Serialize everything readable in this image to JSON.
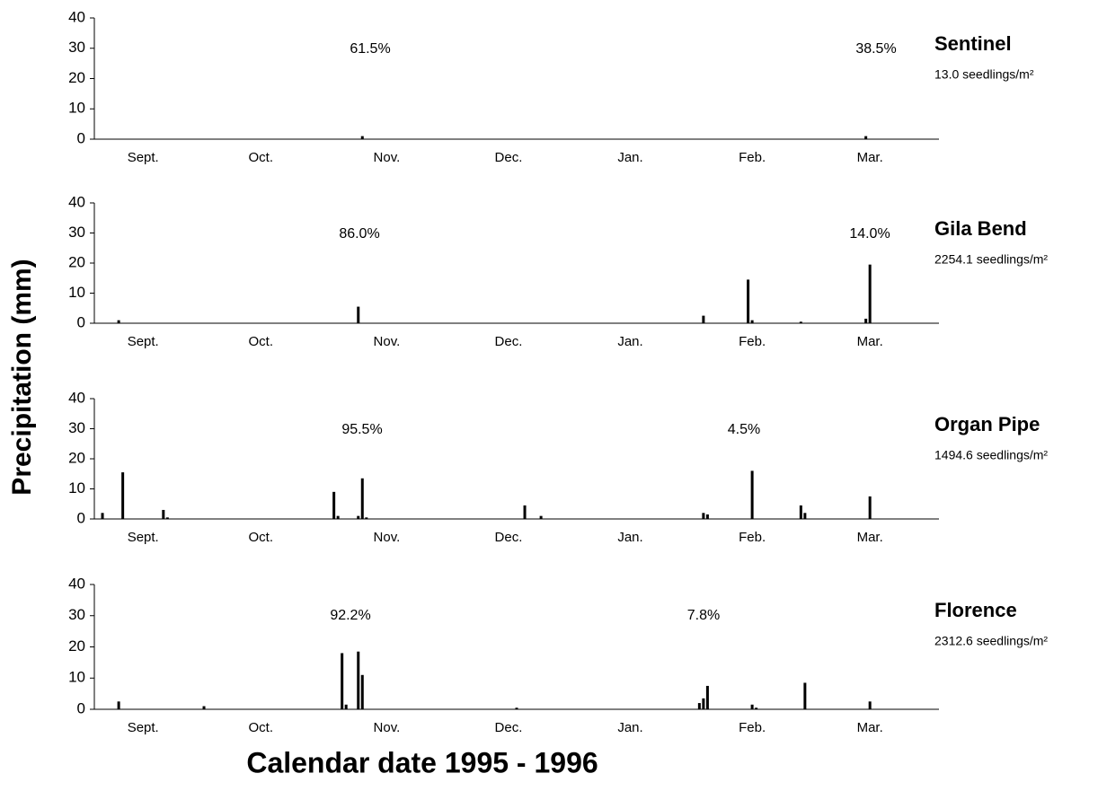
{
  "ylabel": "Precipitation (mm)",
  "xlabel": "Calendar date 1995 - 1996",
  "chart_data": [
    {
      "type": "bar",
      "title": "Sentinel",
      "subtitle": "13.0 seedlings/m²",
      "annotations": [
        "61.5%",
        "38.5%"
      ],
      "x": [
        66,
        190
      ],
      "values": [
        1,
        1
      ],
      "color": "#000000",
      "xlim": [
        0,
        208
      ],
      "xticks": [
        {
          "value": 12,
          "label": "Sept."
        },
        {
          "value": 41,
          "label": "Oct."
        },
        {
          "value": 72,
          "label": "Nov."
        },
        {
          "value": 102,
          "label": "Dec."
        },
        {
          "value": 132,
          "label": "Jan."
        },
        {
          "value": 162,
          "label": "Feb."
        },
        {
          "value": 191,
          "label": "Mar."
        }
      ],
      "ylim": [
        0,
        40
      ],
      "yticks": [
        0,
        10,
        20,
        30,
        40
      ]
    },
    {
      "type": "bar",
      "title": "Gila Bend",
      "subtitle": "2254.1 seedlings/m²",
      "annotations": [
        "86.0%",
        "14.0%"
      ],
      "x": [
        6,
        65,
        150,
        161,
        162,
        174,
        190,
        191
      ],
      "values": [
        1,
        5.5,
        2.5,
        14.5,
        1,
        0.5,
        1.5,
        19.5
      ],
      "color": "#000000",
      "xlim": [
        0,
        208
      ],
      "xticks": [
        {
          "value": 12,
          "label": "Sept."
        },
        {
          "value": 41,
          "label": "Oct."
        },
        {
          "value": 72,
          "label": "Nov."
        },
        {
          "value": 102,
          "label": "Dec."
        },
        {
          "value": 132,
          "label": "Jan."
        },
        {
          "value": 162,
          "label": "Feb."
        },
        {
          "value": 191,
          "label": "Mar."
        }
      ],
      "ylim": [
        0,
        40
      ],
      "yticks": [
        0,
        10,
        20,
        30,
        40
      ]
    },
    {
      "type": "bar",
      "title": "Organ Pipe",
      "subtitle": "1494.6 seedlings/m²",
      "annotations": [
        "95.5%",
        "4.5%"
      ],
      "x": [
        2,
        7,
        17,
        18,
        59,
        60,
        65,
        66,
        67,
        106,
        110,
        150,
        151,
        162,
        174,
        175,
        191
      ],
      "values": [
        2,
        15.5,
        3,
        0.5,
        9,
        1,
        1,
        13.5,
        0.5,
        4.5,
        1,
        2,
        1.5,
        16,
        4.5,
        2,
        7.5
      ],
      "color": "#000000",
      "xlim": [
        0,
        208
      ],
      "xticks": [
        {
          "value": 12,
          "label": "Sept."
        },
        {
          "value": 41,
          "label": "Oct."
        },
        {
          "value": 72,
          "label": "Nov."
        },
        {
          "value": 102,
          "label": "Dec."
        },
        {
          "value": 132,
          "label": "Jan."
        },
        {
          "value": 162,
          "label": "Feb."
        },
        {
          "value": 191,
          "label": "Mar."
        }
      ],
      "ylim": [
        0,
        40
      ],
      "yticks": [
        0,
        10,
        20,
        30,
        40
      ]
    },
    {
      "type": "bar",
      "title": "Florence",
      "subtitle": "2312.6 seedlings/m²",
      "annotations": [
        "92.2%",
        "7.8%"
      ],
      "x": [
        6,
        27,
        61,
        62,
        65,
        66,
        104,
        149,
        150,
        151,
        162,
        163,
        175,
        191
      ],
      "values": [
        2.5,
        1,
        18,
        1.5,
        18.5,
        11,
        0.5,
        2,
        3.5,
        7.5,
        1.5,
        0.5,
        8.5,
        2.5
      ],
      "color": "#000000",
      "xlim": [
        0,
        208
      ],
      "xticks": [
        {
          "value": 12,
          "label": "Sept."
        },
        {
          "value": 41,
          "label": "Oct."
        },
        {
          "value": 72,
          "label": "Nov."
        },
        {
          "value": 102,
          "label": "Dec."
        },
        {
          "value": 132,
          "label": "Jan."
        },
        {
          "value": 162,
          "label": "Feb."
        },
        {
          "value": 191,
          "label": "Mar."
        }
      ],
      "ylim": [
        0,
        40
      ],
      "yticks": [
        0,
        10,
        20,
        30,
        40
      ]
    }
  ]
}
